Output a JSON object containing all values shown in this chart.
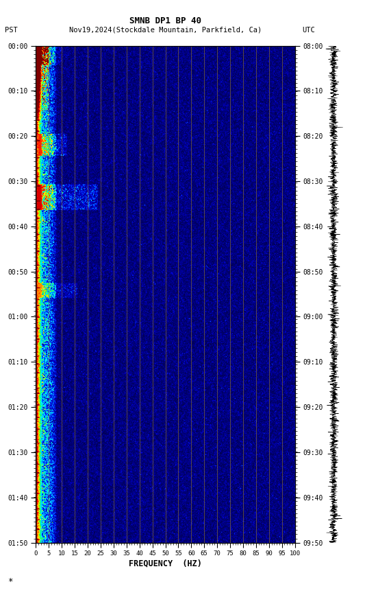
{
  "title1": "SMNB DP1 BP 40",
  "title2_left": "PST",
  "title2_mid": "Nov19,2024(Stockdale Mountain, Parkfield, Ca)",
  "title2_right": "UTC",
  "xlabel": "FREQUENCY  (HZ)",
  "freq_min": 0,
  "freq_max": 100,
  "freq_ticks": [
    0,
    5,
    10,
    15,
    20,
    25,
    30,
    35,
    40,
    45,
    50,
    55,
    60,
    65,
    70,
    75,
    80,
    85,
    90,
    95,
    100
  ],
  "time_left_labels": [
    "00:00",
    "00:10",
    "00:20",
    "00:30",
    "00:40",
    "00:50",
    "01:00",
    "01:10",
    "01:20",
    "01:30",
    "01:40",
    "01:50"
  ],
  "time_right_labels": [
    "08:00",
    "08:10",
    "08:20",
    "08:30",
    "08:40",
    "08:50",
    "09:00",
    "09:10",
    "09:20",
    "09:30",
    "09:40",
    "09:50"
  ],
  "bg_color": "white",
  "seed": 42
}
